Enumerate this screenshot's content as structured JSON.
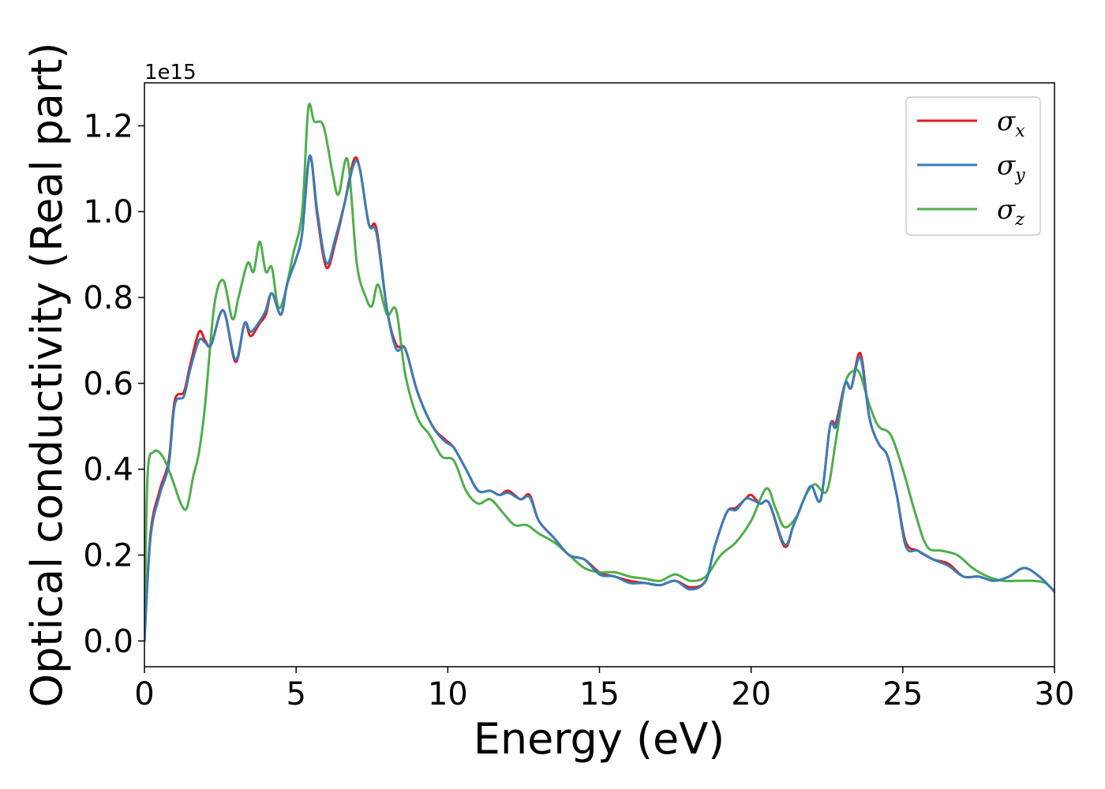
{
  "chart_data": {
    "type": "line",
    "xlabel": "Energy (eV)",
    "ylabel": "Optical conductivity (Real part)",
    "y_offset_label": "1e15",
    "xlim": [
      0,
      30
    ],
    "ylim": [
      -0.06,
      1.3
    ],
    "xticks": [
      0,
      5,
      10,
      15,
      20,
      25,
      30
    ],
    "xtick_labels": [
      "0",
      "5",
      "10",
      "15",
      "20",
      "25",
      "30"
    ],
    "yticks": [
      0.0,
      0.2,
      0.4,
      0.6,
      0.8,
      1.0,
      1.2
    ],
    "ytick_labels": [
      "0.0",
      "0.2",
      "0.4",
      "0.6",
      "0.8",
      "1.0",
      "1.2"
    ],
    "grid": false,
    "legend_position": "top-right",
    "series": [
      {
        "name": "σ",
        "sub": "x",
        "color": "#e41a1c",
        "x": [
          0,
          0.2,
          0.5,
          0.8,
          1.0,
          1.3,
          1.5,
          1.8,
          2.0,
          2.2,
          2.6,
          3.0,
          3.3,
          3.5,
          3.8,
          4.0,
          4.2,
          4.5,
          4.7,
          5.0,
          5.2,
          5.45,
          5.7,
          6.0,
          6.3,
          6.6,
          6.9,
          7.1,
          7.4,
          7.65,
          8.0,
          8.3,
          8.6,
          9.0,
          9.5,
          9.9,
          10.2,
          10.6,
          11.0,
          11.4,
          11.7,
          12.0,
          12.4,
          12.7,
          13.0,
          13.5,
          14.0,
          14.5,
          15.0,
          15.5,
          16.0,
          16.5,
          17.0,
          17.5,
          18.0,
          18.5,
          18.8,
          19.2,
          19.5,
          19.8,
          20.0,
          20.3,
          20.6,
          21.1,
          21.4,
          21.8,
          22.0,
          22.3,
          22.6,
          22.8,
          23.1,
          23.3,
          23.6,
          23.9,
          24.2,
          24.5,
          24.8,
          25.1,
          25.5,
          26.0,
          26.5,
          27.0,
          27.5,
          28.0,
          28.5,
          29.0,
          29.5,
          30.0
        ],
        "values": [
          0.0,
          0.25,
          0.35,
          0.42,
          0.56,
          0.58,
          0.64,
          0.72,
          0.7,
          0.69,
          0.77,
          0.65,
          0.74,
          0.71,
          0.74,
          0.76,
          0.81,
          0.76,
          0.83,
          0.89,
          0.95,
          1.13,
          0.99,
          0.87,
          0.93,
          1.02,
          1.12,
          1.1,
          0.97,
          0.96,
          0.77,
          0.69,
          0.68,
          0.58,
          0.5,
          0.47,
          0.45,
          0.4,
          0.35,
          0.35,
          0.34,
          0.35,
          0.33,
          0.34,
          0.28,
          0.24,
          0.2,
          0.19,
          0.16,
          0.15,
          0.14,
          0.135,
          0.13,
          0.14,
          0.125,
          0.14,
          0.22,
          0.3,
          0.31,
          0.33,
          0.34,
          0.32,
          0.32,
          0.22,
          0.27,
          0.34,
          0.36,
          0.33,
          0.5,
          0.51,
          0.6,
          0.59,
          0.67,
          0.52,
          0.46,
          0.43,
          0.34,
          0.23,
          0.21,
          0.19,
          0.18,
          0.15,
          0.15,
          0.14,
          0.15,
          0.17,
          0.15,
          0.115
        ]
      },
      {
        "name": "σ",
        "sub": "y",
        "color": "#377eb8",
        "x": [
          0,
          0.2,
          0.5,
          0.8,
          1.0,
          1.3,
          1.5,
          1.8,
          2.0,
          2.2,
          2.6,
          3.0,
          3.3,
          3.5,
          3.8,
          4.0,
          4.2,
          4.5,
          4.7,
          5.0,
          5.2,
          5.45,
          5.7,
          6.0,
          6.3,
          6.6,
          6.9,
          7.1,
          7.4,
          7.65,
          8.0,
          8.3,
          8.6,
          9.0,
          9.5,
          9.9,
          10.2,
          10.6,
          11.0,
          11.4,
          11.7,
          12.0,
          12.4,
          12.7,
          13.0,
          13.5,
          14.0,
          14.5,
          15.0,
          15.5,
          16.0,
          16.5,
          17.0,
          17.5,
          18.0,
          18.5,
          18.8,
          19.2,
          19.5,
          19.8,
          20.0,
          20.3,
          20.6,
          21.1,
          21.4,
          21.8,
          22.0,
          22.3,
          22.6,
          22.8,
          23.1,
          23.3,
          23.6,
          23.9,
          24.2,
          24.5,
          24.8,
          25.1,
          25.5,
          26.0,
          26.5,
          27.0,
          27.5,
          28.0,
          28.5,
          29.0,
          29.5,
          30.0
        ],
        "values": [
          0.0,
          0.24,
          0.34,
          0.41,
          0.55,
          0.57,
          0.63,
          0.7,
          0.695,
          0.69,
          0.77,
          0.655,
          0.74,
          0.72,
          0.745,
          0.77,
          0.81,
          0.76,
          0.83,
          0.89,
          0.95,
          1.13,
          1.0,
          0.88,
          0.94,
          1.02,
          1.11,
          1.1,
          0.97,
          0.95,
          0.77,
          0.68,
          0.68,
          0.58,
          0.5,
          0.465,
          0.45,
          0.4,
          0.35,
          0.35,
          0.34,
          0.345,
          0.33,
          0.335,
          0.28,
          0.24,
          0.2,
          0.19,
          0.155,
          0.15,
          0.135,
          0.135,
          0.13,
          0.14,
          0.12,
          0.14,
          0.22,
          0.3,
          0.305,
          0.33,
          0.33,
          0.32,
          0.32,
          0.225,
          0.27,
          0.34,
          0.36,
          0.33,
          0.5,
          0.5,
          0.6,
          0.59,
          0.66,
          0.52,
          0.46,
          0.43,
          0.34,
          0.22,
          0.21,
          0.19,
          0.175,
          0.15,
          0.15,
          0.14,
          0.15,
          0.17,
          0.15,
          0.115
        ]
      },
      {
        "name": "σ",
        "sub": "z",
        "color": "#4daf4a",
        "x": [
          0,
          0.1,
          0.3,
          0.6,
          0.9,
          1.2,
          1.4,
          1.6,
          1.8,
          2.0,
          2.3,
          2.6,
          2.9,
          3.1,
          3.4,
          3.6,
          3.8,
          4.0,
          4.2,
          4.4,
          4.6,
          4.9,
          5.2,
          5.4,
          5.6,
          5.9,
          6.2,
          6.4,
          6.7,
          7.0,
          7.3,
          7.5,
          7.7,
          8.0,
          8.3,
          8.6,
          9.0,
          9.4,
          9.8,
          10.2,
          10.6,
          11.0,
          11.4,
          11.8,
          12.2,
          12.6,
          13.0,
          13.5,
          14.0,
          14.5,
          15.0,
          15.5,
          16.0,
          16.5,
          17.0,
          17.5,
          18.0,
          18.5,
          19.0,
          19.5,
          20.0,
          20.5,
          20.8,
          21.1,
          21.5,
          21.8,
          22.1,
          22.5,
          22.8,
          23.1,
          23.4,
          23.6,
          23.9,
          24.2,
          24.6,
          25.0,
          25.4,
          25.8,
          26.3,
          26.8,
          27.3,
          27.8,
          28.3,
          28.8,
          29.3,
          29.7,
          30.0
        ],
        "values": [
          0.0,
          0.38,
          0.44,
          0.43,
          0.38,
          0.32,
          0.31,
          0.38,
          0.44,
          0.55,
          0.78,
          0.84,
          0.75,
          0.8,
          0.88,
          0.86,
          0.93,
          0.86,
          0.87,
          0.78,
          0.8,
          0.9,
          1.0,
          1.24,
          1.21,
          1.2,
          1.09,
          1.04,
          1.12,
          0.88,
          0.8,
          0.78,
          0.83,
          0.76,
          0.77,
          0.62,
          0.52,
          0.48,
          0.43,
          0.42,
          0.35,
          0.32,
          0.33,
          0.3,
          0.27,
          0.27,
          0.25,
          0.23,
          0.2,
          0.17,
          0.16,
          0.16,
          0.15,
          0.145,
          0.14,
          0.155,
          0.14,
          0.15,
          0.2,
          0.23,
          0.28,
          0.355,
          0.31,
          0.265,
          0.29,
          0.34,
          0.365,
          0.35,
          0.47,
          0.6,
          0.63,
          0.62,
          0.55,
          0.5,
          0.48,
          0.4,
          0.3,
          0.22,
          0.21,
          0.2,
          0.17,
          0.15,
          0.14,
          0.14,
          0.14,
          0.135,
          0.115
        ]
      }
    ]
  }
}
